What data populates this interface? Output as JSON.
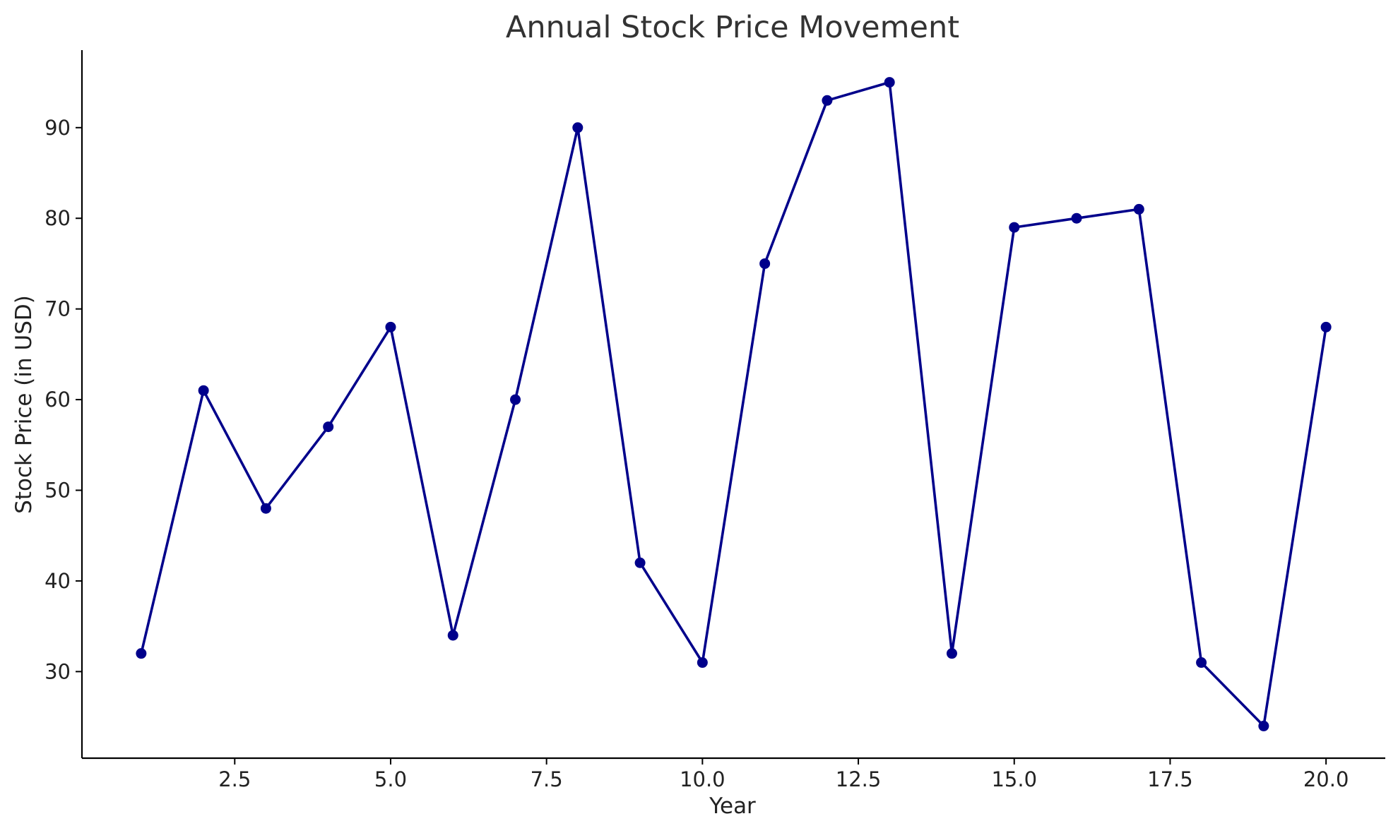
{
  "chart_data": {
    "type": "line",
    "title": "Annual Stock Price Movement",
    "xlabel": "Year",
    "ylabel": "Stock Price (in USD)",
    "xlim": [
      0.05,
      20.95
    ],
    "ylim": [
      20.45,
      98.55
    ],
    "x_ticks": [
      2.5,
      5.0,
      7.5,
      10.0,
      12.5,
      15.0,
      17.5,
      20.0
    ],
    "x_tick_labels": [
      "2.5",
      "5.0",
      "7.5",
      "10.0",
      "12.5",
      "15.0",
      "17.5",
      "20.0"
    ],
    "y_ticks": [
      30,
      40,
      50,
      60,
      70,
      80,
      90
    ],
    "y_tick_labels": [
      "30",
      "40",
      "50",
      "60",
      "70",
      "80",
      "90"
    ],
    "grid": false,
    "legend": "none",
    "series": [
      {
        "color": "#00008B",
        "marker": "circle",
        "x": [
          1,
          2,
          3,
          4,
          5,
          6,
          7,
          8,
          9,
          10,
          11,
          12,
          13,
          14,
          15,
          16,
          17,
          18,
          19,
          20
        ],
        "values": [
          32,
          61,
          48,
          57,
          68,
          34,
          60,
          90,
          42,
          31,
          75,
          93,
          95,
          32,
          79,
          80,
          81,
          31,
          24,
          68
        ]
      }
    ]
  }
}
